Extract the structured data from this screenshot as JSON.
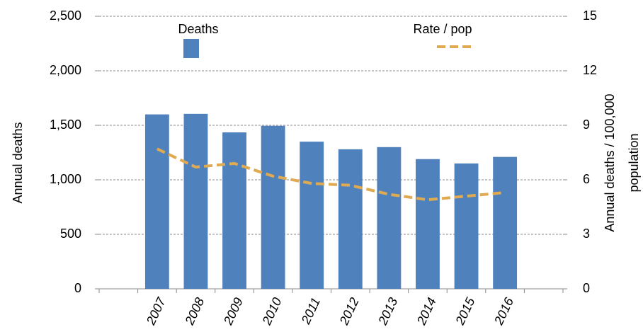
{
  "chart_data": {
    "type": "bar_line",
    "categories": [
      null,
      "2007",
      "2008",
      "2009",
      "2010",
      "2011",
      "2012",
      "2013",
      "2014",
      "2015",
      "2016",
      null
    ],
    "series": [
      {
        "name": "Deaths",
        "type": "bar",
        "color": "#4f81bd",
        "values": [
          null,
          1600,
          1605,
          1435,
          1495,
          1350,
          1280,
          1300,
          1190,
          1150,
          1210,
          null
        ]
      },
      {
        "name": "Rate / pop",
        "type": "line",
        "axis": "y2",
        "dashed": true,
        "color": "#e0aa50",
        "values": [
          null,
          7.7,
          6.7,
          6.9,
          6.2,
          5.8,
          5.7,
          5.2,
          4.9,
          5.1,
          5.3,
          null
        ]
      }
    ],
    "y_label": "Annual deaths",
    "y2_label": [
      "Annual deaths / 100,000",
      "population"
    ],
    "ylim": [
      0,
      2500
    ],
    "yticks": [
      0,
      500,
      {
        "value": 1000,
        "label": "1,000"
      },
      {
        "value": 1500,
        "label": "1,500"
      },
      {
        "value": 2000,
        "label": "2,000"
      },
      {
        "value": 2500,
        "label": "2,500"
      }
    ],
    "y2lim": [
      0,
      15
    ],
    "y2ticks": [
      0,
      3,
      6,
      9,
      12,
      15
    ],
    "grid": true
  }
}
